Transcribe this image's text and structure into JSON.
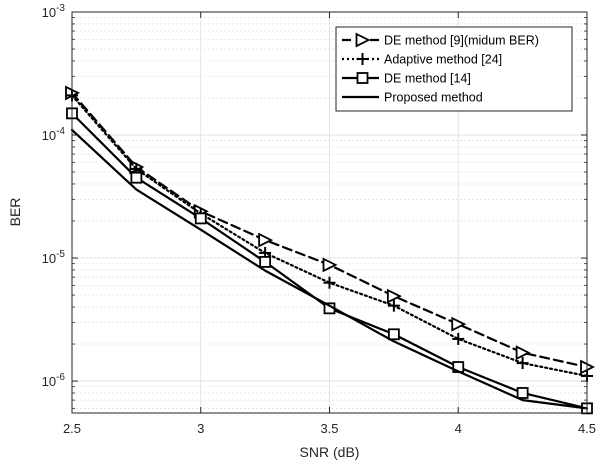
{
  "chart_data": {
    "type": "line",
    "title": "",
    "xlabel": "SNR (dB)",
    "ylabel": "BER",
    "yscale": "log",
    "xlim": [
      2.5,
      4.5
    ],
    "ylim": [
      5.5e-07,
      0.001
    ],
    "grid": true,
    "legend_position": "top-right",
    "x_ticks": [
      2.5,
      3,
      3.5,
      4,
      4.5
    ],
    "x_tick_labels": [
      "2.5",
      "3",
      "3.5",
      "4",
      "4.5"
    ],
    "y_tick_labels": [
      {
        "value": 0.001,
        "base": "10",
        "exp": "-3"
      },
      {
        "value": 0.0001,
        "base": "10",
        "exp": "-4"
      },
      {
        "value": 1e-05,
        "base": "10",
        "exp": "-5"
      },
      {
        "value": 1e-06,
        "base": "10",
        "exp": "-6"
      }
    ],
    "x": [
      2.5,
      2.75,
      3.0,
      3.25,
      3.5,
      3.75,
      4.0,
      4.25,
      4.5
    ],
    "series": [
      {
        "name": "DE method [9](midum BER)",
        "line_style": "dashed",
        "marker": "triangle-right",
        "color": "#000000",
        "values": [
          0.00022,
          5.5e-05,
          2.4e-05,
          1.4e-05,
          8.8e-06,
          4.9e-06,
          2.9e-06,
          1.7e-06,
          1.3e-06
        ]
      },
      {
        "name": "Adaptive method [24]",
        "line_style": "dotted",
        "marker": "plus",
        "color": "#000000",
        "values": [
          0.00021,
          5.3e-05,
          2.3e-05,
          1.1e-05,
          6.3e-06,
          4.1e-06,
          2.2e-06,
          1.4e-06,
          1.1e-06
        ]
      },
      {
        "name": "DE method [14]",
        "line_style": "solid",
        "marker": "square",
        "color": "#000000",
        "values": [
          0.00015,
          4.5e-05,
          2.1e-05,
          9.3e-06,
          3.9e-06,
          2.4e-06,
          1.3e-06,
          8e-07,
          6e-07
        ]
      },
      {
        "name": "Proposed method",
        "line_style": "solid",
        "marker": "none",
        "color": "#000000",
        "values": [
          0.00011,
          3.6e-05,
          1.7e-05,
          7.9e-06,
          4.1e-06,
          2.1e-06,
          1.2e-06,
          7e-07,
          6e-07
        ]
      }
    ]
  }
}
